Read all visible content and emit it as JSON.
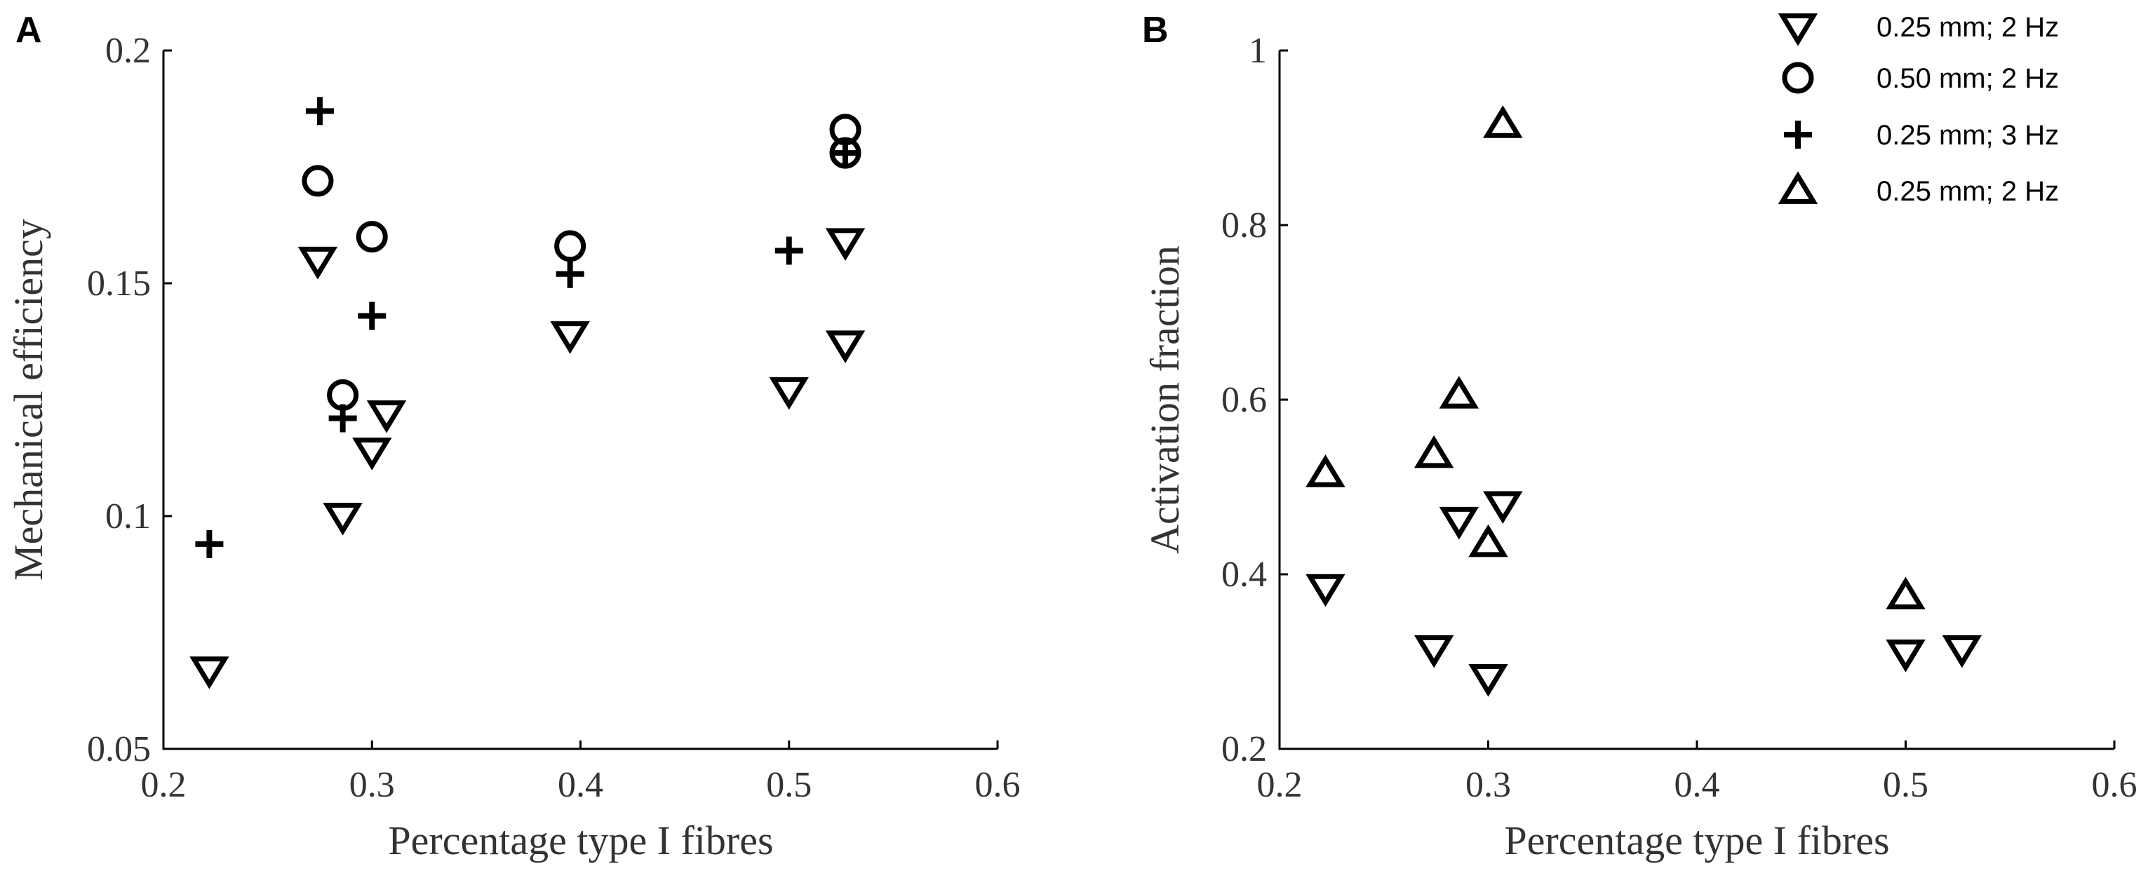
{
  "chart_data": [
    {
      "panel": "A",
      "type": "scatter",
      "xlabel": "Percentage type I fibres",
      "ylabel": "Mechanical efficiency",
      "xlim": [
        0.2,
        0.6
      ],
      "ylim": [
        0.05,
        0.2
      ],
      "xticks": [
        "0.2",
        "0.3",
        "0.4",
        "0.5",
        "0.6"
      ],
      "yticks": [
        "0.05",
        "0.1",
        "0.15",
        "0.2"
      ],
      "series": [
        {
          "name": "0.25 mm; 2 Hz",
          "marker": "triangle-down",
          "points": [
            [
              0.222,
              0.067
            ],
            [
              0.274,
              0.155
            ],
            [
              0.286,
              0.1
            ],
            [
              0.3,
              0.114
            ],
            [
              0.307,
              0.122
            ],
            [
              0.395,
              0.139
            ],
            [
              0.5,
              0.127
            ],
            [
              0.527,
              0.159
            ],
            [
              0.527,
              0.137
            ]
          ]
        },
        {
          "name": "0.50 mm; 2 Hz",
          "marker": "circle",
          "points": [
            [
              0.274,
              0.172
            ],
            [
              0.3,
              0.16
            ],
            [
              0.286,
              0.126
            ],
            [
              0.395,
              0.158
            ],
            [
              0.527,
              0.183
            ],
            [
              0.527,
              0.178
            ]
          ]
        },
        {
          "name": "0.25 mm; 3 Hz",
          "marker": "plus",
          "points": [
            [
              0.222,
              0.094
            ],
            [
              0.275,
              0.187
            ],
            [
              0.3,
              0.143
            ],
            [
              0.286,
              0.121
            ],
            [
              0.395,
              0.152
            ],
            [
              0.5,
              0.157
            ],
            [
              0.527,
              0.178
            ]
          ]
        }
      ]
    },
    {
      "panel": "B",
      "type": "scatter",
      "xlabel": "Percentage type I fibres",
      "ylabel": "Activation fraction",
      "xlim": [
        0.2,
        0.6
      ],
      "ylim": [
        0.2,
        1.0
      ],
      "xticks": [
        "0.2",
        "0.3",
        "0.4",
        "0.5",
        "0.6"
      ],
      "yticks": [
        "0.2",
        "0.4",
        "0.6",
        "0.8",
        "1"
      ],
      "series": [
        {
          "name": "0.25 mm; 2 Hz",
          "marker": "triangle-down",
          "points": [
            [
              0.222,
              0.385
            ],
            [
              0.274,
              0.315
            ],
            [
              0.286,
              0.462
            ],
            [
              0.3,
              0.282
            ],
            [
              0.307,
              0.48
            ],
            [
              0.5,
              0.31
            ],
            [
              0.527,
              0.315
            ]
          ]
        },
        {
          "name": "0.25 mm; 2 Hz",
          "marker": "triangle-up",
          "points": [
            [
              0.222,
              0.515
            ],
            [
              0.274,
              0.537
            ],
            [
              0.286,
              0.605
            ],
            [
              0.3,
              0.435
            ],
            [
              0.307,
              0.915
            ],
            [
              0.5,
              0.375
            ]
          ]
        }
      ]
    }
  ],
  "legend": {
    "position": "top-right",
    "entries": [
      {
        "marker": "triangle-down",
        "label": "0.25 mm; 2 Hz"
      },
      {
        "marker": "circle",
        "label": "0.50 mm; 2 Hz"
      },
      {
        "marker": "plus",
        "label": "0.25 mm; 3 Hz"
      },
      {
        "marker": "triangle-up",
        "label": "0.25 mm; 2 Hz"
      }
    ]
  },
  "colors": {
    "marker": "#000000",
    "text": "#333333"
  }
}
